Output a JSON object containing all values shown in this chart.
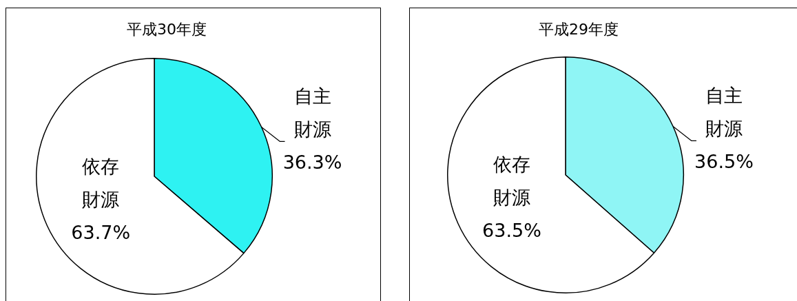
{
  "chart_data": [
    {
      "type": "pie",
      "title": "平成30年度",
      "categories": [
        "自主財源",
        "依存財源"
      ],
      "values": [
        36.3,
        63.7
      ],
      "value_labels": [
        "36.3%",
        "63.7%"
      ],
      "colors": [
        "#2ef2f2",
        "#ffffff"
      ]
    },
    {
      "type": "pie",
      "title": "平成29年度",
      "categories": [
        "自主財源",
        "依存財源"
      ],
      "values": [
        36.5,
        63.5
      ],
      "value_labels": [
        "36.5%",
        "63.5%"
      ],
      "colors": [
        "#8ff5f5",
        "#ffffff"
      ]
    }
  ]
}
